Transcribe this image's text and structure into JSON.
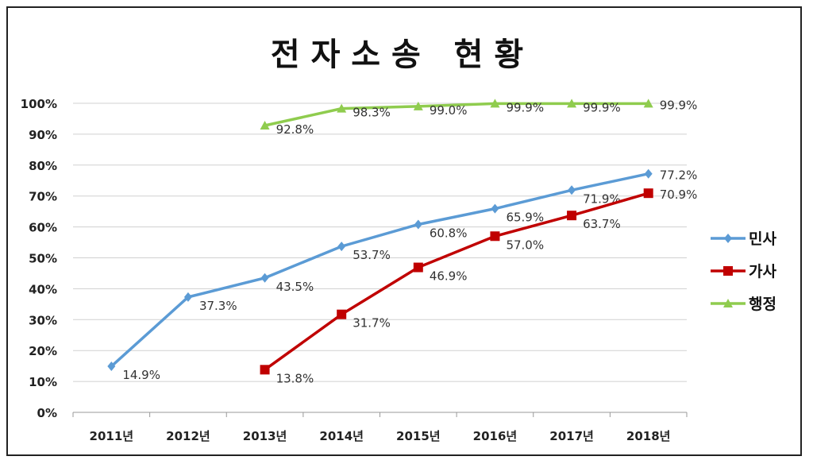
{
  "chart_data": {
    "type": "line",
    "title": "전 자 소 송   현 황",
    "categories": [
      "2011년",
      "2012년",
      "2013년",
      "2014년",
      "2015년",
      "2016년",
      "2017년",
      "2018년"
    ],
    "ylim": [
      0,
      100
    ],
    "yticks": [
      "0%",
      "10%",
      "20%",
      "30%",
      "40%",
      "50%",
      "60%",
      "70%",
      "80%",
      "90%",
      "100%"
    ],
    "grid": true,
    "legend_position": "right",
    "series": [
      {
        "name": "민사",
        "color": "#5b9bd5",
        "marker": "diamond",
        "values": [
          14.9,
          37.3,
          43.5,
          53.7,
          60.8,
          65.9,
          71.9,
          77.2
        ],
        "labels": [
          "14.9%",
          "37.3%",
          "43.5%",
          "53.7%",
          "60.8%",
          "65.9%",
          "71.9%",
          "77.2%"
        ]
      },
      {
        "name": "가사",
        "color": "#c00000",
        "marker": "square",
        "values": [
          null,
          null,
          13.8,
          31.7,
          46.9,
          57.0,
          63.7,
          70.9
        ],
        "labels": [
          null,
          null,
          "13.8%",
          "31.7%",
          "46.9%",
          "57.0%",
          "63.7%",
          "70.9%"
        ]
      },
      {
        "name": "행정",
        "color": "#8fcc4e",
        "marker": "triangle",
        "values": [
          null,
          null,
          92.8,
          98.3,
          99.0,
          99.9,
          99.9,
          99.9
        ],
        "labels": [
          null,
          null,
          "92.8%",
          "98.3%",
          "99.0%",
          "99.9%",
          "99.9%",
          "99.9%"
        ]
      }
    ]
  }
}
